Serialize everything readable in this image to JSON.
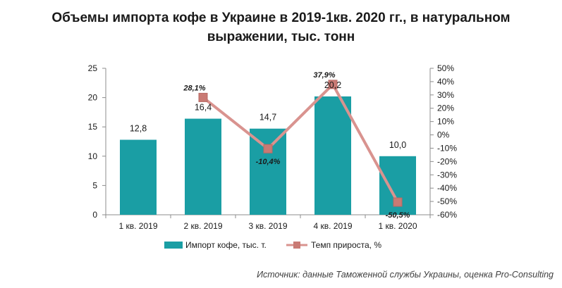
{
  "chart_data": {
    "type": "bar",
    "title_line1": "Объемы импорта кофе в Украине в 2019-1кв. 2020 гг., в натуральном",
    "title_line2": "выражении, тыс. тонн",
    "categories": [
      "1 кв. 2019",
      "2 кв. 2019",
      "3 кв. 2019",
      "4 кв. 2019",
      "1 кв. 2020"
    ],
    "series": [
      {
        "name": "Импорт кофе, тыс. т.",
        "type": "bar",
        "axis": "left",
        "color": "#1a9ea4",
        "values": [
          12.8,
          16.4,
          14.7,
          20.2,
          10.0
        ],
        "labels": [
          "12,8",
          "16,4",
          "14,7",
          "20,2",
          "10,0"
        ]
      },
      {
        "name": "Темп прироста, %",
        "type": "line",
        "axis": "right",
        "color": "#d9938f",
        "marker_color": "#c97a74",
        "values": [
          null,
          28.1,
          -10.4,
          37.9,
          -50.5
        ],
        "labels": [
          "",
          "28,1%",
          "-10,4%",
          "37,9%",
          "-50,5%"
        ]
      }
    ],
    "y_left": {
      "min": 0,
      "max": 25,
      "step": 5,
      "ticks": [
        "0",
        "5",
        "10",
        "15",
        "20",
        "25"
      ]
    },
    "y_right": {
      "min": -60,
      "max": 50,
      "step": 10,
      "ticks": [
        "-60%",
        "-50%",
        "-40%",
        "-30%",
        "-20%",
        "-10%",
        "0%",
        "10%",
        "20%",
        "30%",
        "40%",
        "50%"
      ]
    },
    "xlabel": "",
    "ylabel": "",
    "grid": false,
    "legend_position": "bottom"
  },
  "source_note": "Источник: данные Таможенной службы Украины, оценка Pro-Consulting"
}
